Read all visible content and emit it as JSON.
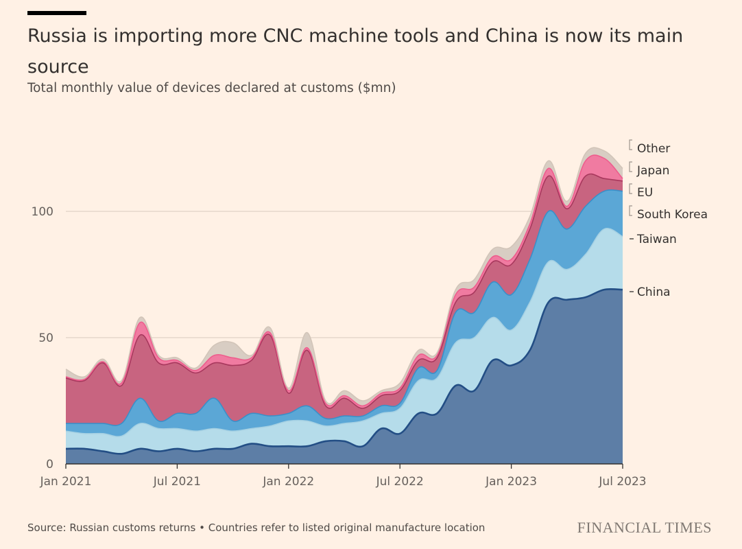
{
  "header": {
    "title": "Russia is importing more CNC machine tools and China is now its main source",
    "subtitle": "Total monthly value of devices declared at customs ($mn)"
  },
  "footer": {
    "source": "Source: Russian customs returns • Countries refer to listed original manufacture location",
    "brand": "FINANCIAL TIMES"
  },
  "colors": {
    "background": "#fff1e5",
    "gridline": "#d9cbbf",
    "axis": "#33302e",
    "text": "#33302e"
  },
  "chart_data": {
    "type": "area",
    "stacked": true,
    "title": "Russia is importing more CNC machine tools and China is now its main source",
    "subtitle": "Total monthly value of devices declared at customs ($mn)",
    "xlabel": "",
    "ylabel": "",
    "ylim": [
      0,
      130
    ],
    "yticks": [
      0,
      50,
      100
    ],
    "ytick_labels": [
      "0",
      "50",
      "100"
    ],
    "x_tick_indices": [
      0,
      6,
      12,
      18,
      24,
      30
    ],
    "x_tick_labels": [
      "Jan 2021",
      "Jul 2021",
      "Jan 2022",
      "Jul 2022",
      "Jan 2023",
      "Jul 2023"
    ],
    "months": [
      "Jan 2021",
      "Feb 2021",
      "Mar 2021",
      "Apr 2021",
      "May 2021",
      "Jun 2021",
      "Jul 2021",
      "Aug 2021",
      "Sep 2021",
      "Oct 2021",
      "Nov 2021",
      "Dec 2021",
      "Jan 2022",
      "Feb 2022",
      "Mar 2022",
      "Apr 2022",
      "May 2022",
      "Jun 2022",
      "Jul 2022",
      "Aug 2022",
      "Sep 2022",
      "Oct 2022",
      "Nov 2022",
      "Dec 2022",
      "Jan 2023",
      "Feb 2023",
      "Mar 2023",
      "Apr 2023",
      "May 2023",
      "Jun 2023",
      "Jul 2023"
    ],
    "grid": true,
    "legend": "direct labels at right end",
    "series": [
      {
        "name": "China",
        "color": "#5d7ea6",
        "line_color": "#234e85",
        "values": [
          6,
          6,
          5,
          4,
          6,
          5,
          6,
          5,
          6,
          6,
          8,
          7,
          7,
          7,
          9,
          9,
          7,
          14,
          12,
          20,
          20,
          31,
          29,
          41,
          39,
          45,
          64,
          65,
          66,
          69,
          69
        ]
      },
      {
        "name": "Taiwan",
        "color": "#b5dcea",
        "line_color": "#a6d1e3",
        "values": [
          7,
          6,
          7,
          7,
          10,
          9,
          8,
          8,
          8,
          7,
          6,
          8,
          10,
          10,
          6,
          7,
          10,
          6,
          10,
          13,
          14,
          17,
          21,
          17,
          14,
          19,
          16,
          12,
          17,
          24,
          21
        ]
      },
      {
        "name": "South Korea",
        "color": "#5ba7d6",
        "line_color": "#3a8fc8",
        "values": [
          3,
          4,
          4,
          5,
          10,
          3,
          6,
          7,
          12,
          4,
          6,
          4,
          3,
          6,
          3,
          3,
          2,
          3,
          2,
          5,
          3,
          12,
          10,
          14,
          14,
          17,
          20,
          16,
          19,
          15,
          18
        ]
      },
      {
        "name": "EU",
        "color": "#c86480",
        "line_color": "#a8385d",
        "values": [
          18,
          17,
          24,
          15,
          25,
          23,
          20,
          16,
          14,
          22,
          21,
          32,
          8,
          22,
          5,
          7,
          3,
          4,
          5,
          3,
          5,
          4,
          8,
          8,
          12,
          12,
          14,
          8,
          12,
          5,
          4
        ]
      },
      {
        "name": "Japan",
        "color": "#f07ba1",
        "line_color": "#ee5d8d",
        "values": [
          0.5,
          0.5,
          0.5,
          1,
          5,
          2,
          1,
          1,
          3,
          3,
          1,
          1,
          1,
          1,
          1,
          1,
          1,
          1,
          1,
          2,
          1,
          3,
          2,
          2,
          2,
          2,
          3,
          1,
          6,
          8,
          1
        ]
      },
      {
        "name": "Other",
        "color": "#d8cdc3",
        "line_color": "#d2c5b9",
        "values": [
          3,
          1,
          1,
          1,
          2,
          1,
          1,
          1,
          4,
          6,
          1,
          2,
          1,
          6,
          1,
          2,
          2,
          1,
          2,
          2,
          1,
          2,
          3,
          3,
          5,
          3,
          3,
          2,
          3,
          3,
          4
        ]
      }
    ],
    "labels_order_top_to_bottom": [
      "Other",
      "Japan",
      "EU",
      "South Korea",
      "Taiwan",
      "China"
    ]
  }
}
